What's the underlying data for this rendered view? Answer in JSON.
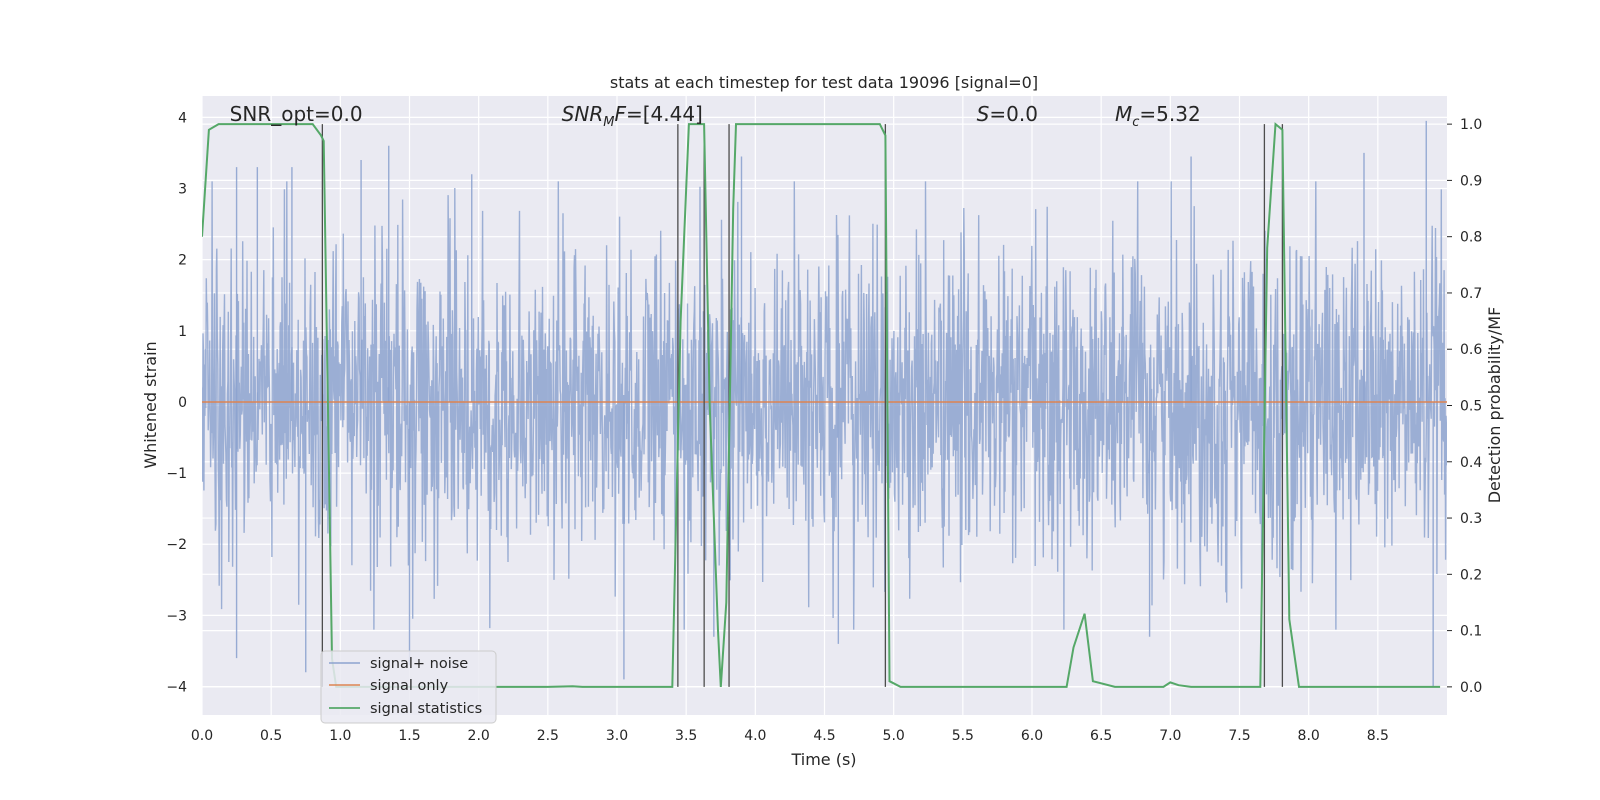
{
  "chart_data": {
    "type": "line",
    "title": "stats at each timestep for test data 19096 [signal=0]",
    "xlabel": "Time (s)",
    "ylabel_left": "Whitened strain",
    "ylabel_right": "Detection probability/MF",
    "xlim": [
      0.0,
      9.0
    ],
    "ylim_left": [
      -4.4,
      4.3
    ],
    "ylim_right": [
      -0.05,
      1.05
    ],
    "x_ticks": [
      "0.0",
      "0.5",
      "1.0",
      "1.5",
      "2.0",
      "2.5",
      "3.0",
      "3.5",
      "4.0",
      "4.5",
      "5.0",
      "5.5",
      "6.0",
      "6.5",
      "7.0",
      "7.5",
      "8.0",
      "8.5"
    ],
    "x_tick_values": [
      0.0,
      0.5,
      1.0,
      1.5,
      2.0,
      2.5,
      3.0,
      3.5,
      4.0,
      4.5,
      5.0,
      5.5,
      6.0,
      6.5,
      7.0,
      7.5,
      8.0,
      8.5
    ],
    "y_left_ticks": [
      "−4",
      "−3",
      "−2",
      "−1",
      "0",
      "1",
      "2",
      "3",
      "4"
    ],
    "y_left_tick_values": [
      -4,
      -3,
      -2,
      -1,
      0,
      1,
      2,
      3,
      4
    ],
    "y_right_ticks": [
      "0.0",
      "0.1",
      "0.2",
      "0.3",
      "0.4",
      "0.5",
      "0.6",
      "0.7",
      "0.8",
      "0.9",
      "1.0"
    ],
    "y_right_tick_values": [
      0.0,
      0.1,
      0.2,
      0.3,
      0.4,
      0.5,
      0.6,
      0.7,
      0.8,
      0.9,
      1.0
    ],
    "grid": true,
    "legend_position": "lower-left",
    "annotations": [
      {
        "text": "SNR_opt=0.0",
        "x": 0.2
      },
      {
        "text": "SNR_MF=[4.44]",
        "x": 2.6
      },
      {
        "text": "S=0.0",
        "x": 5.6
      },
      {
        "text": "M_c=5.32",
        "x": 6.6
      }
    ],
    "vertical_lines_x": [
      0.87,
      3.44,
      3.63,
      3.81,
      4.94,
      7.68,
      7.81
    ],
    "series": [
      {
        "name": "signal+ noise",
        "color": "#8da3cf",
        "description": "whitened noise strain, dense fluctuation mostly within ±2.5, peaks near ±4",
        "noise_amplitude": 1.1,
        "peaks": [
          [
            0.25,
            3.3
          ],
          [
            0.4,
            3.3
          ],
          [
            0.65,
            3.3
          ],
          [
            1.15,
            3.4
          ],
          [
            1.35,
            3.6
          ],
          [
            1.95,
            3.2
          ],
          [
            3.9,
            3.45
          ],
          [
            7.15,
            3.45
          ],
          [
            8.4,
            3.5
          ],
          [
            8.85,
            3.95
          ],
          [
            0.25,
            -3.6
          ],
          [
            0.75,
            -3.8
          ],
          [
            1.5,
            -3.7
          ],
          [
            3.05,
            -3.9
          ],
          [
            3.7,
            -3.3
          ],
          [
            4.6,
            -3.4
          ],
          [
            6.85,
            -3.3
          ],
          [
            8.9,
            -4.0
          ]
        ]
      },
      {
        "name": "signal only",
        "color": "#dd8452",
        "x": [
          0.0,
          9.0
        ],
        "y": [
          0.0,
          0.0
        ]
      },
      {
        "name": "signal statistics",
        "color": "#55a868",
        "axis": "right",
        "x": [
          0.0,
          0.05,
          0.12,
          0.2,
          0.8,
          0.86,
          0.88,
          0.94,
          0.97,
          1.5,
          2.0,
          2.5,
          2.68,
          2.75,
          3.0,
          3.4,
          3.46,
          3.52,
          3.58,
          3.6,
          3.63,
          3.67,
          3.73,
          3.75,
          3.79,
          3.84,
          3.86,
          3.9,
          4.0,
          4.5,
          4.9,
          4.94,
          4.97,
          5.05,
          5.5,
          6.0,
          6.25,
          6.3,
          6.38,
          6.44,
          6.6,
          6.95,
          7.0,
          7.06,
          7.15,
          7.5,
          7.65,
          7.7,
          7.76,
          7.81,
          7.86,
          7.93,
          8.0,
          8.5,
          8.95
        ],
        "y": [
          0.8,
          0.99,
          1.0,
          1.0,
          1.0,
          0.98,
          0.97,
          0.05,
          0.0,
          0.0,
          0.0,
          0.0,
          0.001,
          0.0,
          0.0,
          0.0,
          0.65,
          1.0,
          1.0,
          1.0,
          1.0,
          0.5,
          0.1,
          0.0,
          0.15,
          0.85,
          1.0,
          1.0,
          1.0,
          1.0,
          1.0,
          0.98,
          0.01,
          0.0,
          0.0,
          0.0,
          0.0,
          0.07,
          0.13,
          0.01,
          0.0,
          0.0,
          0.008,
          0.003,
          0.0,
          0.0,
          0.0,
          0.78,
          1.0,
          0.99,
          0.12,
          0.0,
          0.0,
          0.0,
          0.0
        ]
      }
    ]
  }
}
